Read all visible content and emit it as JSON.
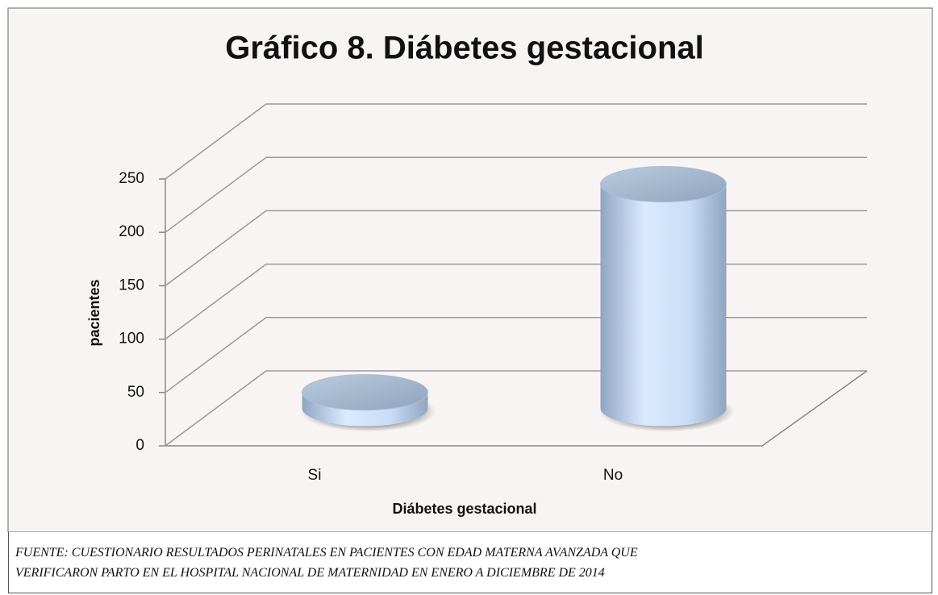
{
  "chart_data": {
    "type": "bar3d",
    "title": "Gráfico 8. Diábetes gestacional",
    "x_label": "Diábetes gestacional",
    "y_label": "pacientes",
    "categories": [
      "Si",
      "No"
    ],
    "values": [
      15,
      210
    ],
    "color": "#c4dcf4",
    "ylim": [
      0,
      250
    ],
    "yticks": [
      0,
      50,
      100,
      150,
      200,
      250
    ],
    "grid": true
  },
  "footer": {
    "lines": [
      "FUENTE: CUESTIONARIO RESULTADOS  PERINATALES EN PACIENTES CON EDAD MATERNA AVANZADA QUE",
      "VERIFICARON PARTO EN EL HOSPITAL NACIONAL DE MATERNIDAD EN ENERO A DICIEMBRE DE 2014"
    ]
  }
}
